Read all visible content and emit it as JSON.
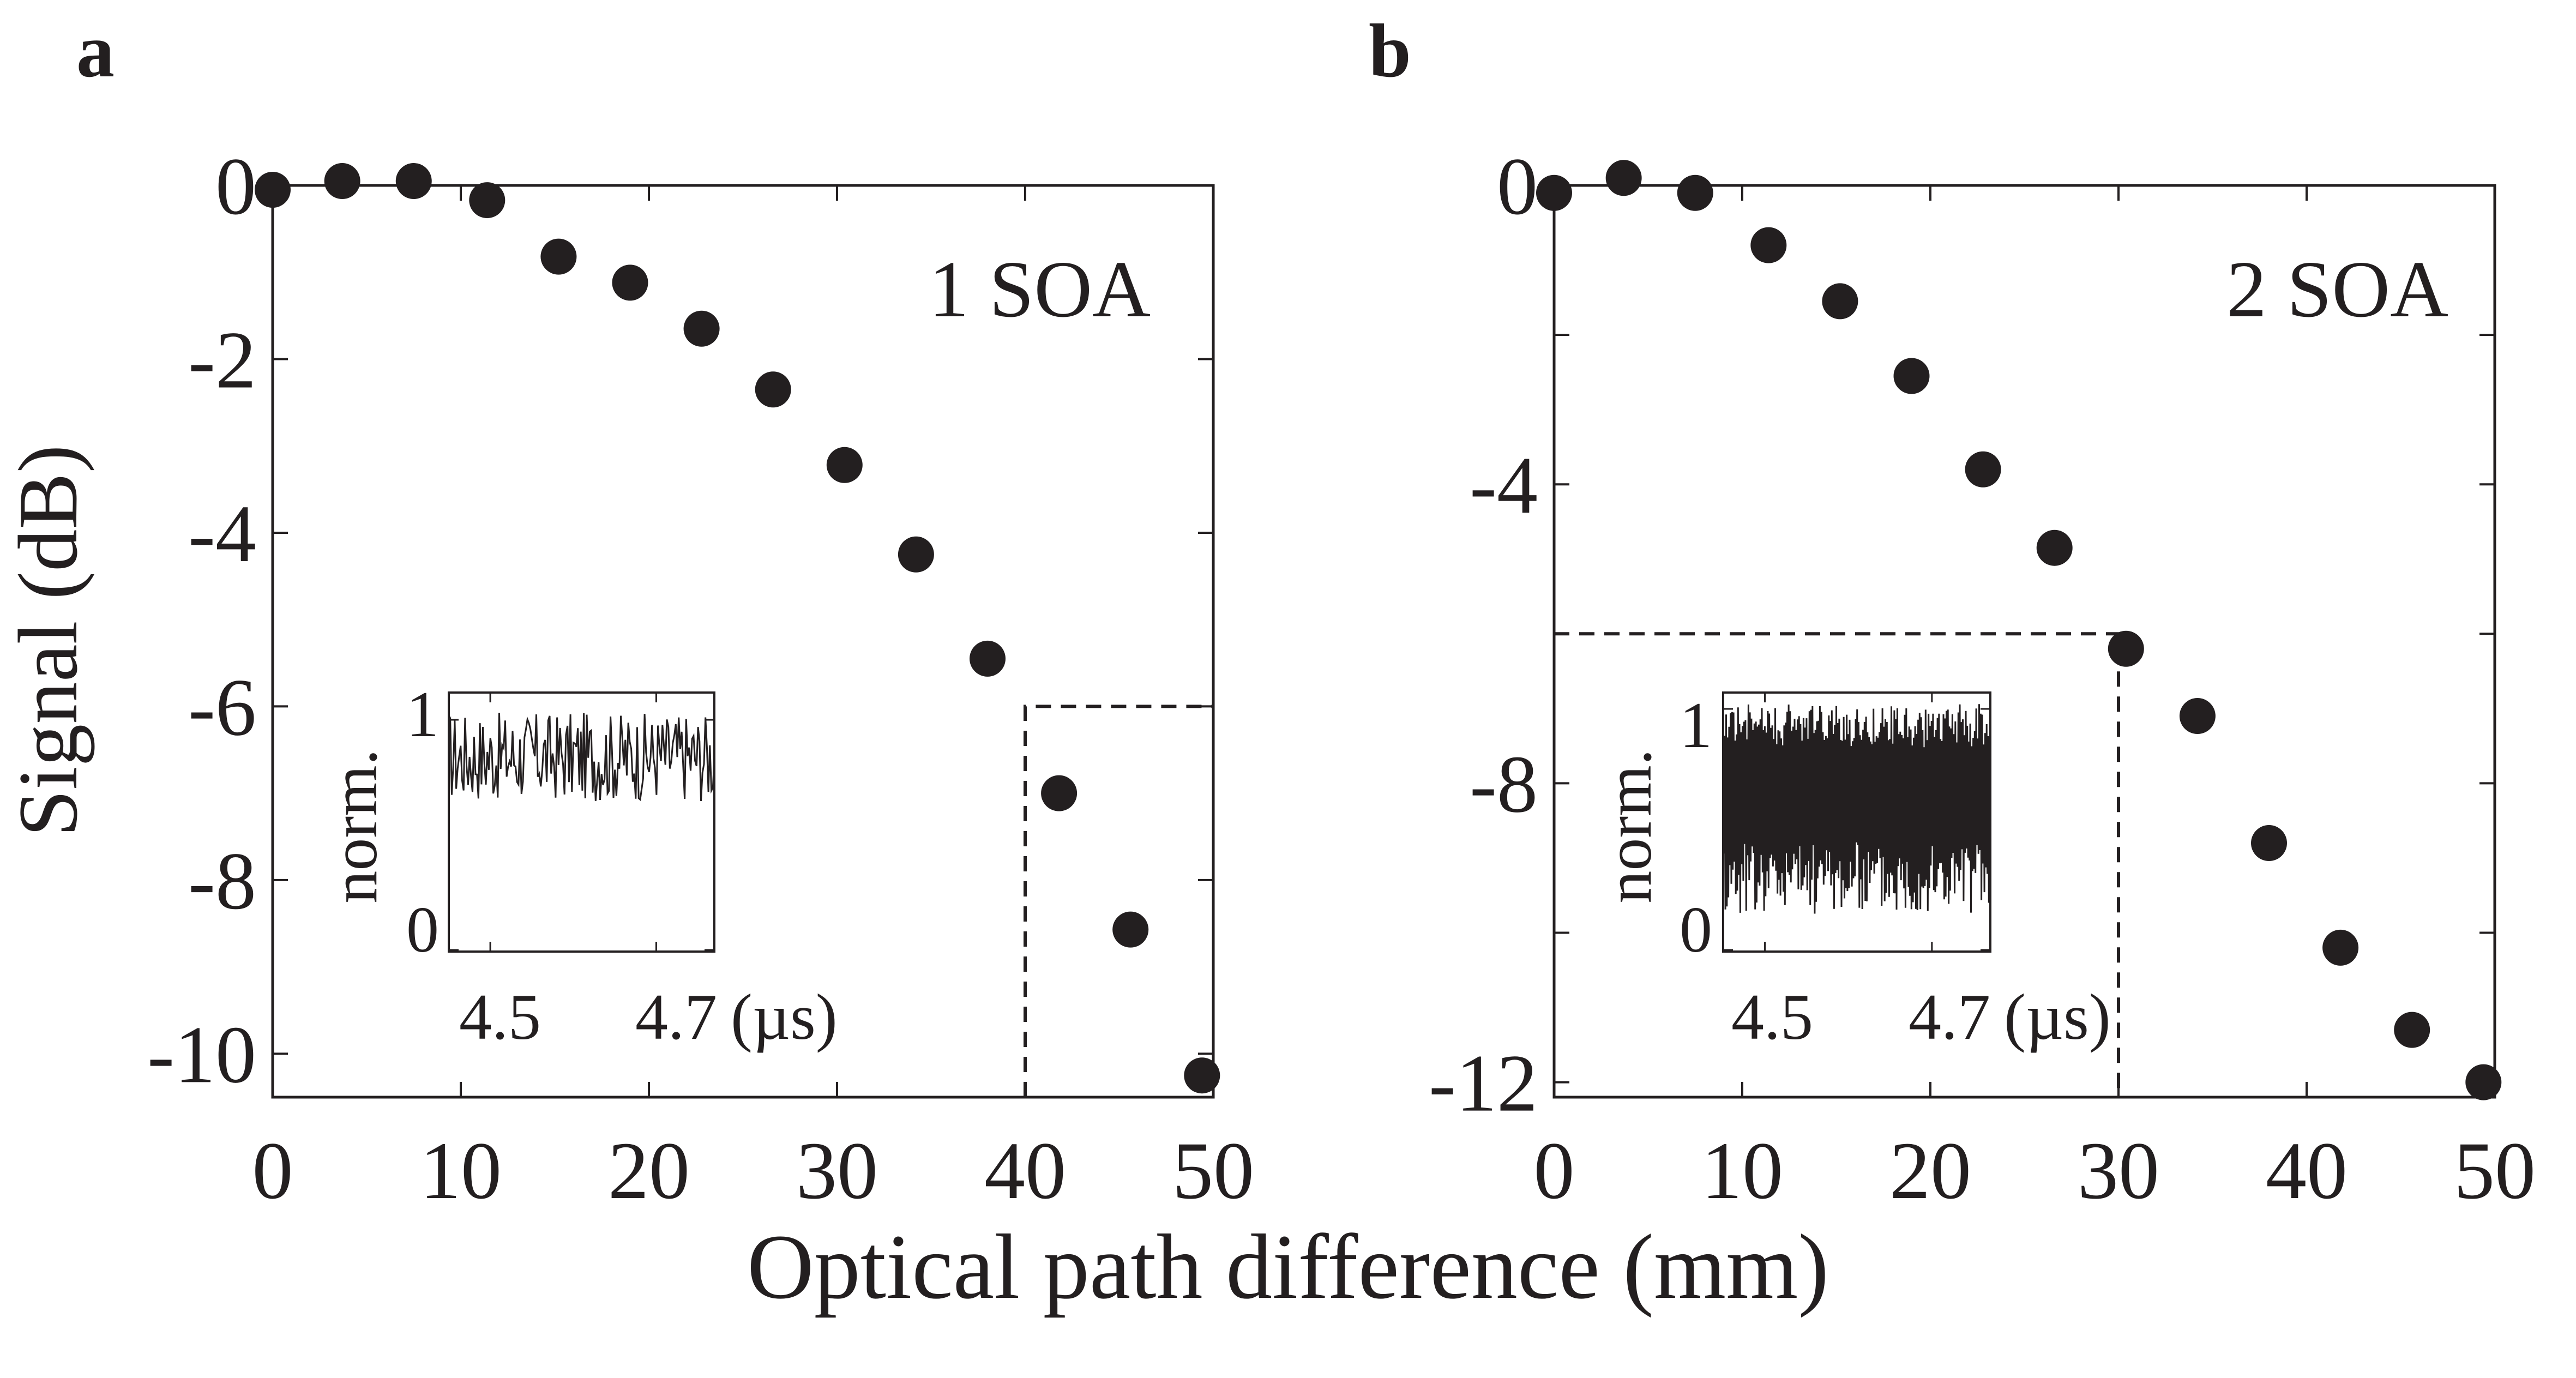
{
  "figure": {
    "xlabel": "Optical path difference (mm)",
    "ylabel": "Signal (dB)",
    "colors": {
      "ink": "#231f20",
      "background": "#ffffff"
    }
  },
  "chart_data": [
    {
      "type": "scatter",
      "panel_label": "a",
      "annotation": "1 SOA",
      "xlabel": "Optical path difference (mm)",
      "ylabel": "Signal (dB)",
      "xlim": [
        0,
        50
      ],
      "ylim": [
        -10.5,
        0
      ],
      "xticks": [
        0,
        10,
        20,
        30,
        40,
        50
      ],
      "xtick_labels": [
        "0",
        "10",
        "20",
        "30",
        "40",
        "50"
      ],
      "yticks": [
        0,
        -2,
        -4,
        -6,
        -8,
        -10
      ],
      "ytick_labels": [
        "0",
        "-2",
        "-4",
        "-6",
        "-8",
        "-10"
      ],
      "grid": false,
      "series": [
        {
          "x": [
            0,
            3.7,
            7.5,
            11.4,
            15.2,
            19.0,
            22.8,
            26.6,
            30.4,
            34.2,
            38.0,
            41.8,
            45.6,
            49.4
          ],
          "y": [
            -0.05,
            0.05,
            0.05,
            -0.17,
            -0.82,
            -1.12,
            -1.65,
            -2.35,
            -3.22,
            -4.25,
            -5.45,
            -7.0,
            -8.57,
            -10.25
          ]
        }
      ],
      "dashed_box": {
        "x_from": 40,
        "y_at": -6
      },
      "inset": {
        "type": "line",
        "ylabel": "norm.",
        "xlabel_unit": "(µs)",
        "xlim": [
          4.45,
          4.77
        ],
        "ylim": [
          0,
          1
        ],
        "xtick_labels": [
          "4.5",
          "4.7"
        ],
        "xticks": [
          4.5,
          4.7
        ],
        "ytick_labels": [
          "1",
          "0"
        ],
        "yticks": [
          1,
          0
        ],
        "signal_min": 0.6,
        "signal_max": 1.03,
        "signal_mean": 0.84
      }
    },
    {
      "type": "scatter",
      "panel_label": "b",
      "annotation": "2 SOA",
      "xlabel": "Optical path difference (mm)",
      "ylabel": "Signal (dB)",
      "xlim": [
        0,
        50
      ],
      "ylim": [
        -12.2,
        0
      ],
      "xticks": [
        0,
        10,
        20,
        30,
        40,
        50
      ],
      "xtick_labels": [
        "0",
        "10",
        "20",
        "30",
        "40",
        "50"
      ],
      "yticks": [
        0,
        -4,
        -8,
        -12
      ],
      "ytick_labels": [
        "0",
        "-4",
        "-8",
        "-12"
      ],
      "minor_yticks": [
        -2,
        -6,
        -10
      ],
      "grid": false,
      "series": [
        {
          "x": [
            0,
            3.7,
            7.5,
            11.4,
            15.2,
            19.0,
            22.8,
            26.6,
            30.4,
            34.2,
            38.0,
            41.8,
            45.6,
            49.4
          ],
          "y": [
            -0.1,
            0.1,
            -0.1,
            -0.8,
            -1.55,
            -2.55,
            -3.8,
            -4.85,
            -6.2,
            -7.1,
            -8.8,
            -10.2,
            -11.3,
            -12.0
          ]
        }
      ],
      "dashed_box": {
        "x_to": 30,
        "y_at": -6
      },
      "inset": {
        "type": "line",
        "ylabel": "norm.",
        "xlabel_unit": "(µs)",
        "xlim": [
          4.45,
          4.77
        ],
        "ylim": [
          0,
          1
        ],
        "xtick_labels": [
          "4.5",
          "4.7"
        ],
        "xticks": [
          4.5,
          4.7
        ],
        "ytick_labels": [
          "1",
          "0"
        ],
        "yticks": [
          1,
          0
        ],
        "signal_min": 0.15,
        "signal_max": 1.02,
        "signal_mean": 0.6
      }
    }
  ]
}
